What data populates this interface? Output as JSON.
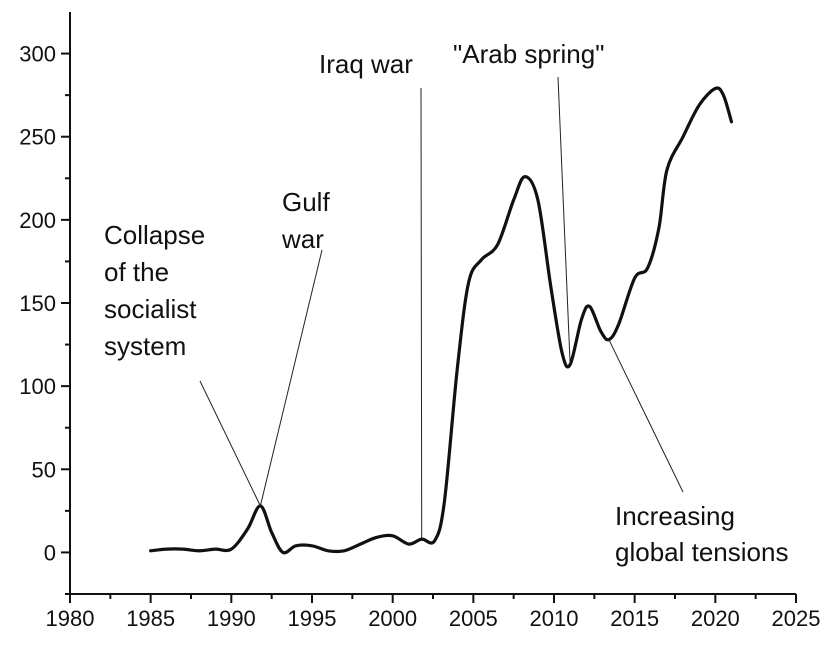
{
  "chart_data": {
    "type": "line",
    "title": "",
    "xlabel": "",
    "ylabel": "",
    "xlim": [
      1980,
      2025
    ],
    "ylim": [
      -25,
      325
    ],
    "grid": false,
    "legend": "none",
    "line_color": "#111111",
    "x_ticks": [
      1980,
      1985,
      1990,
      1995,
      2000,
      2005,
      2010,
      2015,
      2020,
      2025
    ],
    "y_ticks": [
      0,
      50,
      100,
      150,
      200,
      250,
      300
    ],
    "series": [
      {
        "points": [
          [
            1985,
            1
          ],
          [
            1986,
            2
          ],
          [
            1987,
            2
          ],
          [
            1988,
            1
          ],
          [
            1989,
            2
          ],
          [
            1990,
            2
          ],
          [
            1991,
            14
          ],
          [
            1991.8,
            28
          ],
          [
            1992.5,
            12
          ],
          [
            1993.2,
            0
          ],
          [
            1994,
            4
          ],
          [
            1995,
            4
          ],
          [
            1996,
            1
          ],
          [
            1997,
            1
          ],
          [
            1998,
            5
          ],
          [
            1999,
            9
          ],
          [
            2000,
            10
          ],
          [
            2001,
            5
          ],
          [
            2001.8,
            8
          ],
          [
            2002.6,
            7
          ],
          [
            2003.2,
            30
          ],
          [
            2004,
            110
          ],
          [
            2004.7,
            162
          ],
          [
            2005.5,
            176
          ],
          [
            2006.5,
            185
          ],
          [
            2007.5,
            212
          ],
          [
            2008.2,
            226
          ],
          [
            2009,
            212
          ],
          [
            2009.8,
            160
          ],
          [
            2010.5,
            120
          ],
          [
            2011,
            113
          ],
          [
            2011.7,
            140
          ],
          [
            2012.2,
            148
          ],
          [
            2012.9,
            133
          ],
          [
            2013.4,
            128
          ],
          [
            2014,
            137
          ],
          [
            2015,
            165
          ],
          [
            2015.8,
            171
          ],
          [
            2016.5,
            195
          ],
          [
            2017,
            230
          ],
          [
            2018,
            250
          ],
          [
            2019,
            269
          ],
          [
            2020,
            279
          ],
          [
            2020.5,
            275
          ],
          [
            2021,
            259
          ]
        ]
      }
    ],
    "annotations": [
      {
        "lines": [
          "Collapse",
          "of the",
          "socialist",
          "system"
        ],
        "x": 1991.8,
        "y": 28
      },
      {
        "lines": [
          "Gulf",
          "war"
        ],
        "x": 1991.8,
        "y": 28
      },
      {
        "lines": [
          "Iraq war"
        ],
        "x": 2001.8,
        "y": 8
      },
      {
        "lines": [
          "\"Arab spring\""
        ],
        "x": 2011,
        "y": 113
      },
      {
        "lines": [
          "Increasing",
          "global tensions"
        ],
        "x": 2013.4,
        "y": 128
      }
    ]
  }
}
